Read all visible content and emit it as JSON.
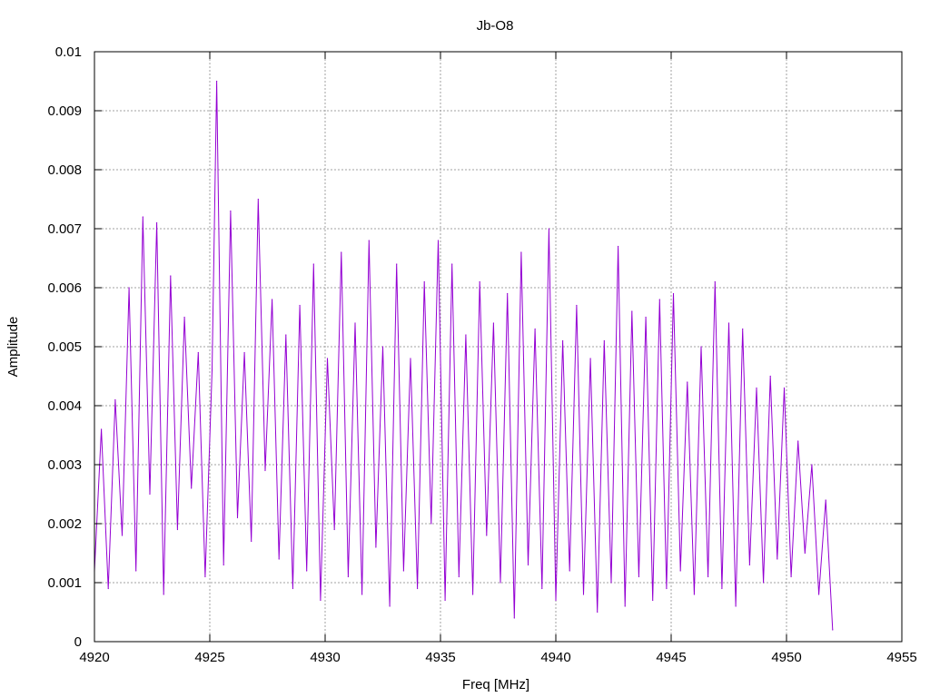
{
  "chart_data": {
    "type": "line",
    "title": "Jb-O8",
    "xlabel": "Freq [MHz]",
    "ylabel": "Amplitude",
    "xlim": [
      4920,
      4955
    ],
    "ylim": [
      0,
      0.01
    ],
    "xticks": [
      4920,
      4925,
      4930,
      4935,
      4940,
      4945,
      4950,
      4955
    ],
    "xtick_labels": [
      "4920",
      "4925",
      "4930",
      "4935",
      "4940",
      "4945",
      "4950",
      "4955"
    ],
    "yticks": [
      0,
      0.001,
      0.002,
      0.003,
      0.004,
      0.005,
      0.006,
      0.007,
      0.008,
      0.009,
      0.01
    ],
    "ytick_labels": [
      "0",
      "0.001",
      "0.002",
      "0.003",
      "0.004",
      "0.005",
      "0.006",
      "0.007",
      "0.008",
      "0.009",
      "0.01"
    ],
    "grid": true,
    "legend": "none",
    "series": [
      {
        "color": "#9400d3",
        "x": [
          4920.0,
          4920.3,
          4920.6,
          4920.9,
          4921.2,
          4921.5,
          4921.8,
          4922.1,
          4922.4,
          4922.7,
          4923.0,
          4923.3,
          4923.6,
          4923.9,
          4924.2,
          4924.5,
          4924.8,
          4925.1,
          4925.3,
          4925.6,
          4925.9,
          4926.2,
          4926.5,
          4926.8,
          4927.1,
          4927.4,
          4927.7,
          4928.0,
          4928.3,
          4928.6,
          4928.9,
          4929.2,
          4929.5,
          4929.8,
          4930.1,
          4930.4,
          4930.7,
          4931.0,
          4931.3,
          4931.6,
          4931.9,
          4932.2,
          4932.5,
          4932.8,
          4933.1,
          4933.4,
          4933.7,
          4934.0,
          4934.3,
          4934.6,
          4934.9,
          4935.2,
          4935.5,
          4935.8,
          4936.1,
          4936.4,
          4936.7,
          4937.0,
          4937.3,
          4937.6,
          4937.9,
          4938.2,
          4938.5,
          4938.8,
          4939.1,
          4939.4,
          4939.7,
          4940.0,
          4940.3,
          4940.6,
          4940.9,
          4941.2,
          4941.5,
          4941.8,
          4942.1,
          4942.4,
          4942.7,
          4943.0,
          4943.3,
          4943.6,
          4943.9,
          4944.2,
          4944.5,
          4944.8,
          4945.1,
          4945.4,
          4945.7,
          4946.0,
          4946.3,
          4946.6,
          4946.9,
          4947.2,
          4947.5,
          4947.8,
          4948.1,
          4948.4,
          4948.7,
          4949.0,
          4949.3,
          4949.6,
          4949.9,
          4950.2,
          4950.5,
          4950.8,
          4951.1,
          4951.4,
          4951.7,
          4952.0
        ],
        "y": [
          0.0012,
          0.0036,
          0.0009,
          0.0041,
          0.0018,
          0.006,
          0.0012,
          0.0072,
          0.0025,
          0.0071,
          0.0008,
          0.0062,
          0.0019,
          0.0055,
          0.0026,
          0.0049,
          0.0011,
          0.0046,
          0.0095,
          0.0013,
          0.0073,
          0.0021,
          0.0049,
          0.0017,
          0.0075,
          0.0029,
          0.0058,
          0.0014,
          0.0052,
          0.0009,
          0.0057,
          0.0012,
          0.0064,
          0.0007,
          0.0048,
          0.0019,
          0.0066,
          0.0011,
          0.0054,
          0.0008,
          0.0068,
          0.0016,
          0.005,
          0.0006,
          0.0064,
          0.0012,
          0.0048,
          0.0009,
          0.0061,
          0.002,
          0.0068,
          0.0007,
          0.0064,
          0.0011,
          0.0052,
          0.0008,
          0.0061,
          0.0018,
          0.0054,
          0.001,
          0.0059,
          0.0004,
          0.0066,
          0.0013,
          0.0053,
          0.0009,
          0.007,
          0.0007,
          0.0051,
          0.0012,
          0.0057,
          0.0008,
          0.0048,
          0.0005,
          0.0051,
          0.001,
          0.0067,
          0.0006,
          0.0056,
          0.0011,
          0.0055,
          0.0007,
          0.0058,
          0.0009,
          0.0059,
          0.0012,
          0.0044,
          0.0008,
          0.005,
          0.0011,
          0.0061,
          0.0009,
          0.0054,
          0.0006,
          0.0053,
          0.0013,
          0.0043,
          0.001,
          0.0045,
          0.0014,
          0.0043,
          0.0011,
          0.0034,
          0.0015,
          0.003,
          0.0008,
          0.0024,
          0.0002
        ]
      }
    ]
  }
}
